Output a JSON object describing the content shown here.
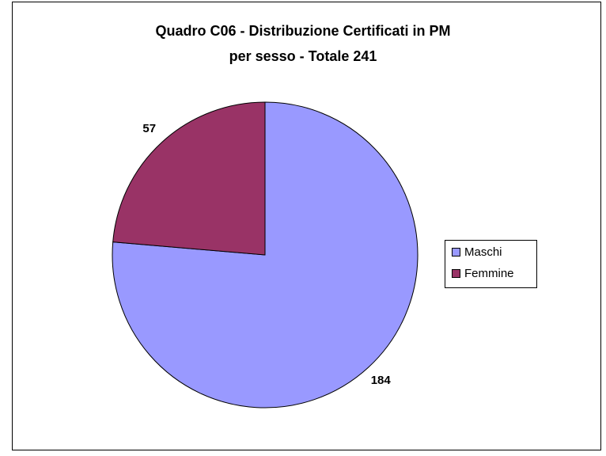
{
  "chart_data": {
    "type": "pie",
    "title": [
      "Quadro C06 - Distribuzione Certificati in PM",
      "per sesso - Totale 241"
    ],
    "categories": [
      "Maschi",
      "Femmine"
    ],
    "values": [
      184,
      57
    ],
    "colors": [
      "#9999ff",
      "#993366"
    ],
    "legend": "right"
  }
}
